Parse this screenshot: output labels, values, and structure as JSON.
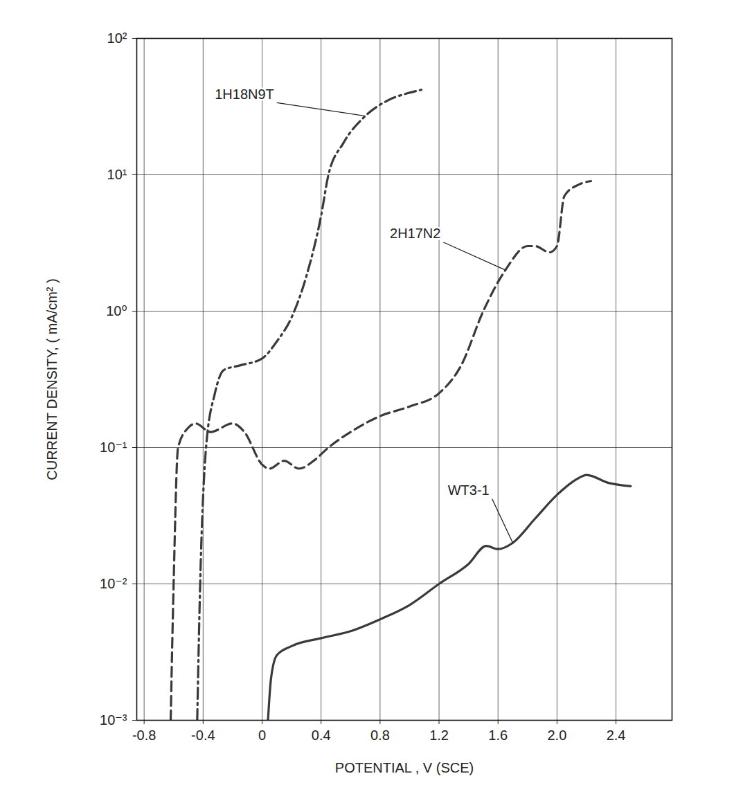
{
  "chart_data": {
    "type": "line",
    "x_label": "POTENTIAL , V (SCE)",
    "y_label": "CURRENT DENSITY, ( mA/cm² )",
    "log": "y",
    "grid": true,
    "xlim": [
      -0.85,
      2.78
    ],
    "ylim": [
      0.001,
      100
    ],
    "xticks": [
      -0.8,
      -0.4,
      0,
      0.4,
      0.8,
      1.2,
      1.6,
      {
        "value": 2,
        "label": "2.0"
      },
      2.4
    ],
    "yticks": [
      {
        "value": 0.001,
        "label": "10⁻³"
      },
      {
        "value": 0.01,
        "label": "10⁻²"
      },
      {
        "value": 0.1,
        "label": "10⁻¹"
      },
      {
        "value": 1,
        "label": "10⁰"
      },
      {
        "value": 10,
        "label": "10¹"
      },
      {
        "value": 100,
        "label": "10²"
      }
    ],
    "series": [
      {
        "name": "1H18N9T",
        "color": "#3a3a3a",
        "line_style": "dashdot",
        "x": [
          -0.44,
          -0.42,
          -0.38,
          -0.32,
          -0.26,
          -0.15,
          0,
          0.1,
          0.2,
          0.3,
          0.4,
          0.45,
          0.55,
          0.7,
          0.85,
          1.0,
          1.08
        ],
        "values": [
          0.001,
          0.01,
          0.1,
          0.25,
          0.37,
          0.4,
          0.45,
          0.6,
          0.9,
          1.8,
          5,
          10,
          17,
          27,
          35,
          40,
          42
        ]
      },
      {
        "name": "2H17N2",
        "color": "#3a3a3a",
        "line_style": "dashed",
        "x": [
          -0.62,
          -0.6,
          -0.57,
          -0.5,
          -0.45,
          -0.35,
          -0.2,
          -0.12,
          0,
          0.05,
          0.15,
          0.25,
          0.35,
          0.45,
          0.6,
          0.8,
          1.0,
          1.2,
          1.35,
          1.5,
          1.65,
          1.8,
          1.85,
          1.95,
          2.0,
          2.05,
          2.15,
          2.23
        ],
        "values": [
          0.001,
          0.01,
          0.1,
          0.14,
          0.15,
          0.13,
          0.15,
          0.13,
          0.075,
          0.07,
          0.08,
          0.07,
          0.08,
          0.1,
          0.13,
          0.17,
          0.2,
          0.25,
          0.4,
          1,
          2,
          3,
          3,
          2.7,
          3,
          7,
          8.5,
          9
        ]
      },
      {
        "name": "WT3-1",
        "color": "#3a3a3a",
        "line_style": "solid",
        "x": [
          0.04,
          0.06,
          0.1,
          0.2,
          0.4,
          0.6,
          0.8,
          1.0,
          1.2,
          1.4,
          1.52,
          1.6,
          1.7,
          1.85,
          2.0,
          2.15,
          2.2,
          2.35,
          2.5
        ],
        "values": [
          0.001,
          0.002,
          0.003,
          0.0035,
          0.004,
          0.0045,
          0.0055,
          0.007,
          0.01,
          0.014,
          0.019,
          0.018,
          0.02,
          0.03,
          0.045,
          0.06,
          0.063,
          0.055,
          0.052
        ]
      }
    ]
  }
}
